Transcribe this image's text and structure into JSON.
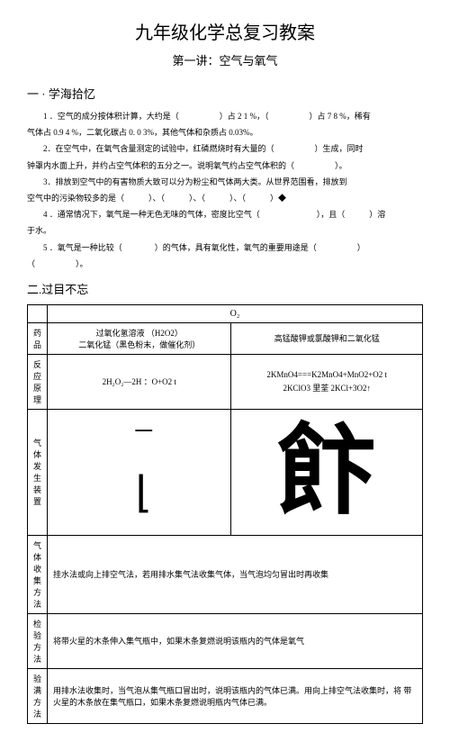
{
  "title": {
    "main": "九年级化学总复习教案",
    "sub": "第一讲：空气与氧气"
  },
  "section1": {
    "heading": "一 · 学海拾忆",
    "p1": "1 ．空气的成分按体积计算，大约是（　　　　　）占 2 1 %，（　　　　　）占 7 8 %，稀有",
    "p1b": "气体占 0.9 4 %，二氧化碳占 0. 0 3%，其他气体和杂质占 0.03%。",
    "p2": "2．在空气中，在氧气含量测定的试验中，红磷燃烧时有大量的（　　　　　）生成，同时",
    "p2b": "钟罩内水面上升，并约占空气体积的五分之一。说明氧气约占空气体积的（　　　　　）。",
    "p3": "3．排放到空气中的有害物质大致可以分为粉尘和气体两大类。从世界范围看，排放到",
    "p3b": "空气中的污染物较多的是（　　　）、（　　　）、（　　　）、（　　　）◆",
    "p4": "4 ．通常情况下，氧气是一种无色无味的气体，密度比空气（　　　　　　　），且（　　　）溶",
    "p4b": "于水。",
    "p5": "5 ．氧气是一种比较（　　　　）的气体，具有氧化性，氧气的重要用途是（　　　　　）",
    "p5b": "（　　　　　）。"
  },
  "section2": {
    "heading": "二.过目不忘",
    "o2": "O₂",
    "labels": {
      "drug": "药品",
      "principle": "反应原理",
      "device": "气体发生装置",
      "collect": "气体收集方法",
      "check": "检验方法",
      "verify": "验满方法"
    },
    "drug_left1": "过氧化氢溶液 （H2O2）",
    "drug_left2": "二氧化锰（黑色粉末，做催化剂）",
    "drug_right": "高锰酸钾或氯酸钾和二氧化锰",
    "eq_left": "2H₂O₂—2H ：O+O2 t",
    "eq_right1": "2KMnO4===K2MnO4+MnO2+O2 t",
    "eq_right2": "2KClO3 里荃 2KCl+3O2↑",
    "glyph_left": "⁻\nL",
    "glyph_right": "飠干",
    "collect_text": "挂水法或向上排空气法，若用排水集气法收集气体，当气泡均匀冒出时再收集",
    "check_text": "将带火星的木条伸入集气瓶中，如果木条复燃说明该瓶内的气体是氧气",
    "verify_text": "用排水法收集时，当气泡从集气瓶口冒出时，说明该瓶内的气体已满。用向上排空气法收集时，将 带火星的木条放在集气瓶口，如果木条复燃说明瓶内气体已满。"
  }
}
